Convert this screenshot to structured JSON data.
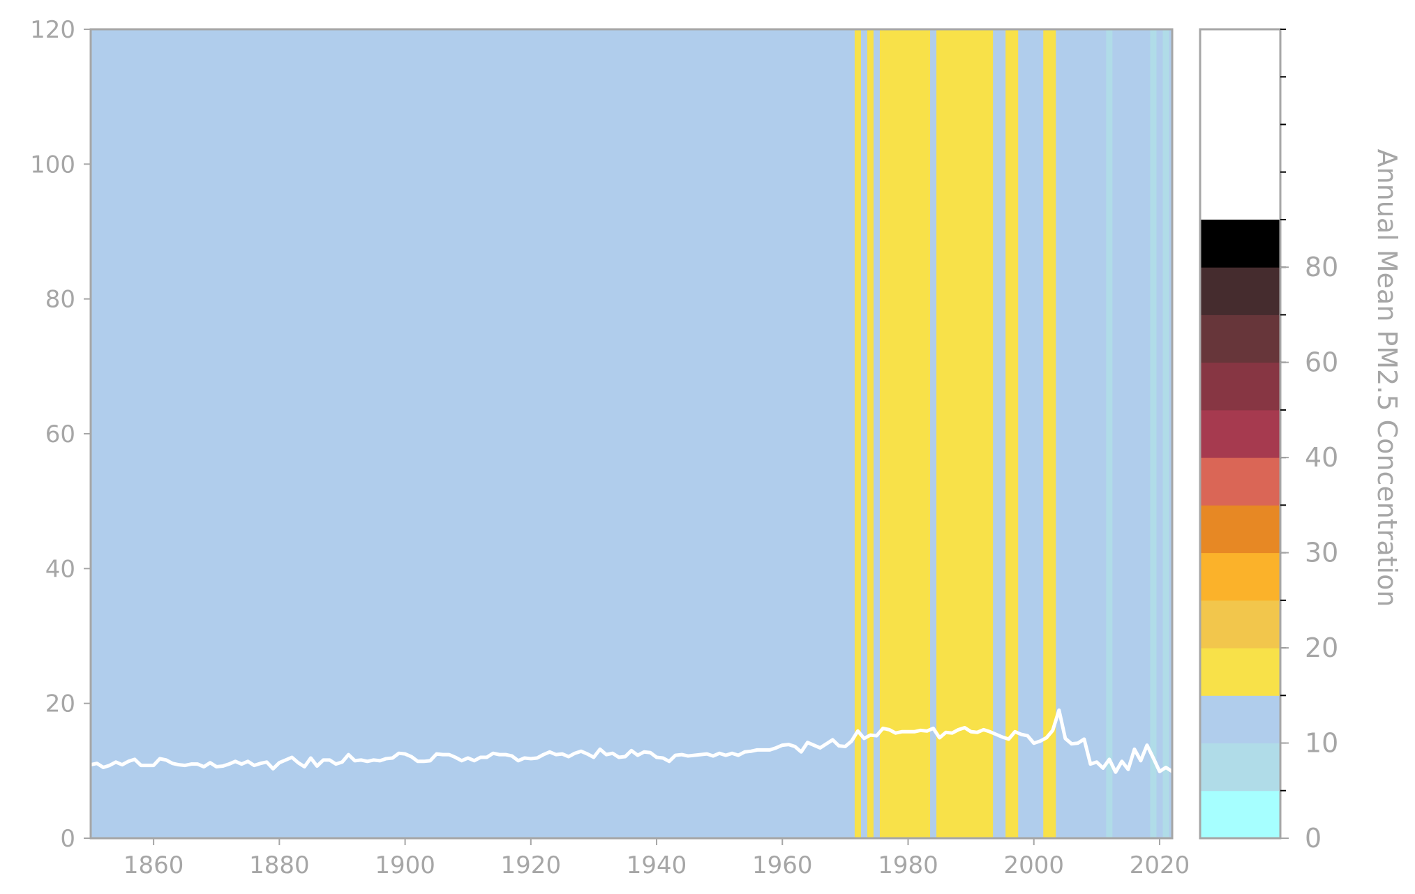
{
  "chart_data": {
    "type": "line",
    "title": "",
    "xlabel": "",
    "ylabel": "",
    "xlim": [
      1850,
      2022
    ],
    "ylim": [
      0,
      120
    ],
    "x_ticks": [
      1860,
      1880,
      1900,
      1920,
      1940,
      1960,
      1980,
      2000,
      2020
    ],
    "y_ticks": [
      0,
      20,
      40,
      60,
      80,
      100,
      120
    ],
    "grid": false,
    "legend": "none",
    "line_color": "#ffffff",
    "series": [
      {
        "x": [
          1850,
          1851,
          1852,
          1853,
          1854,
          1855,
          1856,
          1857,
          1858,
          1859,
          1860,
          1861,
          1862,
          1863,
          1864,
          1865,
          1866,
          1867,
          1868,
          1869,
          1870,
          1871,
          1872,
          1873,
          1874,
          1875,
          1876,
          1877,
          1878,
          1879,
          1880,
          1881,
          1882,
          1883,
          1884,
          1885,
          1886,
          1887,
          1888,
          1889,
          1890,
          1891,
          1892,
          1893,
          1894,
          1895,
          1896,
          1897,
          1898,
          1899,
          1900,
          1901,
          1902,
          1903,
          1904,
          1905,
          1906,
          1907,
          1908,
          1909,
          1910,
          1911,
          1912,
          1913,
          1914,
          1915,
          1916,
          1917,
          1918,
          1919,
          1920,
          1921,
          1922,
          1923,
          1924,
          1925,
          1926,
          1927,
          1928,
          1929,
          1930,
          1931,
          1932,
          1933,
          1934,
          1935,
          1936,
          1937,
          1938,
          1939,
          1940,
          1941,
          1942,
          1943,
          1944,
          1945,
          1946,
          1947,
          1948,
          1949,
          1950,
          1951,
          1952,
          1953,
          1954,
          1955,
          1956,
          1957,
          1958,
          1959,
          1960,
          1961,
          1962,
          1963,
          1964,
          1965,
          1966,
          1967,
          1968,
          1969,
          1970,
          1971,
          1972,
          1973,
          1974,
          1975,
          1976,
          1977,
          1978,
          1979,
          1980,
          1981,
          1982,
          1983,
          1984,
          1985,
          1986,
          1987,
          1988,
          1989,
          1990,
          1991,
          1992,
          1993,
          1994,
          1995,
          1996,
          1997,
          1998,
          1999,
          2000,
          2001,
          2002,
          2003,
          2004,
          2005,
          2006,
          2007,
          2008,
          2009,
          2010,
          2011,
          2012,
          2013,
          2014,
          2015,
          2016,
          2017,
          2018,
          2019,
          2020,
          2021,
          2022
        ],
        "y": [
          10.9,
          11.1,
          10.5,
          10.8,
          11.3,
          10.9,
          11.4,
          11.7,
          10.8,
          10.8,
          10.8,
          11.8,
          11.6,
          11.1,
          10.9,
          10.8,
          11.0,
          11.0,
          10.6,
          11.2,
          10.6,
          10.7,
          11.0,
          11.4,
          11.0,
          11.4,
          10.8,
          11.1,
          11.3,
          10.3,
          11.2,
          11.6,
          12.0,
          11.2,
          10.6,
          11.9,
          10.7,
          11.6,
          11.6,
          11.0,
          11.3,
          12.4,
          11.5,
          11.6,
          11.4,
          11.6,
          11.5,
          11.8,
          11.9,
          12.6,
          12.5,
          12.1,
          11.4,
          11.4,
          11.5,
          12.5,
          12.4,
          12.4,
          12.0,
          11.5,
          11.9,
          11.5,
          12.0,
          12.0,
          12.6,
          12.4,
          12.4,
          12.2,
          11.5,
          11.9,
          11.8,
          11.9,
          12.4,
          12.8,
          12.4,
          12.5,
          12.1,
          12.6,
          12.9,
          12.5,
          12.0,
          13.2,
          12.4,
          12.6,
          12.0,
          12.1,
          13.0,
          12.3,
          12.8,
          12.7,
          12.0,
          11.9,
          11.4,
          12.3,
          12.4,
          12.2,
          12.3,
          12.4,
          12.5,
          12.2,
          12.6,
          12.3,
          12.6,
          12.3,
          12.8,
          12.9,
          13.1,
          13.1,
          13.1,
          13.4,
          13.8,
          13.9,
          13.6,
          12.8,
          14.2,
          13.8,
          13.4,
          14.0,
          14.6,
          13.7,
          13.6,
          14.4,
          15.9,
          14.8,
          15.3,
          15.2,
          16.3,
          16.1,
          15.6,
          15.8,
          15.8,
          15.8,
          16.0,
          15.9,
          16.3,
          14.9,
          15.7,
          15.6,
          16.1,
          16.4,
          15.8,
          15.7,
          16.1,
          15.8,
          15.4,
          15.0,
          14.7,
          15.8,
          15.4,
          15.2,
          14.1,
          14.4,
          14.9,
          16.0,
          19.0,
          14.8,
          14.0,
          14.1,
          14.7,
          11.0,
          11.3,
          10.4,
          11.7,
          9.8,
          11.4,
          10.2,
          13.2,
          11.5,
          13.8,
          11.9,
          9.9,
          10.5,
          9.9
        ]
      }
    ],
    "background_bands": {
      "colors": {
        "blue": "#b0cdec",
        "yellow": "#f8e149",
        "cyan": "#b0dce8"
      },
      "bands": [
        {
          "start": 1850,
          "end": 1971.5,
          "color": "blue"
        },
        {
          "start": 1971.5,
          "end": 1972.5,
          "color": "yellow"
        },
        {
          "start": 1972.5,
          "end": 1973.5,
          "color": "blue"
        },
        {
          "start": 1973.5,
          "end": 1974.5,
          "color": "yellow"
        },
        {
          "start": 1974.5,
          "end": 1975.5,
          "color": "blue"
        },
        {
          "start": 1975.5,
          "end": 1983.5,
          "color": "yellow"
        },
        {
          "start": 1983.5,
          "end": 1984.5,
          "color": "blue"
        },
        {
          "start": 1984.5,
          "end": 1993.5,
          "color": "yellow"
        },
        {
          "start": 1993.5,
          "end": 1995.5,
          "color": "blue"
        },
        {
          "start": 1995.5,
          "end": 1997.5,
          "color": "yellow"
        },
        {
          "start": 1997.5,
          "end": 2001.5,
          "color": "blue"
        },
        {
          "start": 2001.5,
          "end": 2003.5,
          "color": "yellow"
        },
        {
          "start": 2003.5,
          "end": 2011.5,
          "color": "blue"
        },
        {
          "start": 2011.5,
          "end": 2012.5,
          "color": "cyan"
        },
        {
          "start": 2012.5,
          "end": 2018.5,
          "color": "blue"
        },
        {
          "start": 2018.5,
          "end": 2019.5,
          "color": "cyan"
        },
        {
          "start": 2019.5,
          "end": 2020.5,
          "color": "blue"
        },
        {
          "start": 2020.5,
          "end": 2021.5,
          "color": "cyan"
        },
        {
          "start": 2021.5,
          "end": 2022,
          "color": "blue"
        }
      ]
    },
    "colorbar": {
      "label": "Annual Mean PM2.5 Concentration",
      "range": [
        0,
        85
      ],
      "tick_labels": [
        0,
        10,
        20,
        30,
        40,
        50,
        60,
        70,
        80
      ],
      "label_values": [
        "0",
        "10",
        "20",
        "30",
        "40",
        "60",
        "80"
      ],
      "minor_ticks": [
        0,
        5,
        10,
        15,
        20,
        25,
        30,
        35,
        40,
        45,
        50,
        55,
        60,
        65,
        70,
        75,
        80,
        85
      ],
      "segments": [
        {
          "from": 0,
          "to": 5,
          "color": "#a6ffff"
        },
        {
          "from": 5,
          "to": 10,
          "color": "#b0dce8"
        },
        {
          "from": 10,
          "to": 15,
          "color": "#b0cdec"
        },
        {
          "from": 15,
          "to": 20,
          "color": "#f8e149"
        },
        {
          "from": 20,
          "to": 25,
          "color": "#f2c64c"
        },
        {
          "from": 25,
          "to": 30,
          "color": "#fbb22a"
        },
        {
          "from": 30,
          "to": 35,
          "color": "#e78824"
        },
        {
          "from": 35,
          "to": 40,
          "color": "#da6656"
        },
        {
          "from": 40,
          "to": 45,
          "color": "#a63a4f"
        },
        {
          "from": 45,
          "to": 50,
          "color": "#873643"
        },
        {
          "from": 50,
          "to": 55,
          "color": "#67363a"
        },
        {
          "from": 55,
          "to": 60,
          "color": "#452c2e"
        },
        {
          "from": 60,
          "to": 65,
          "color": "#000000"
        }
      ]
    }
  }
}
